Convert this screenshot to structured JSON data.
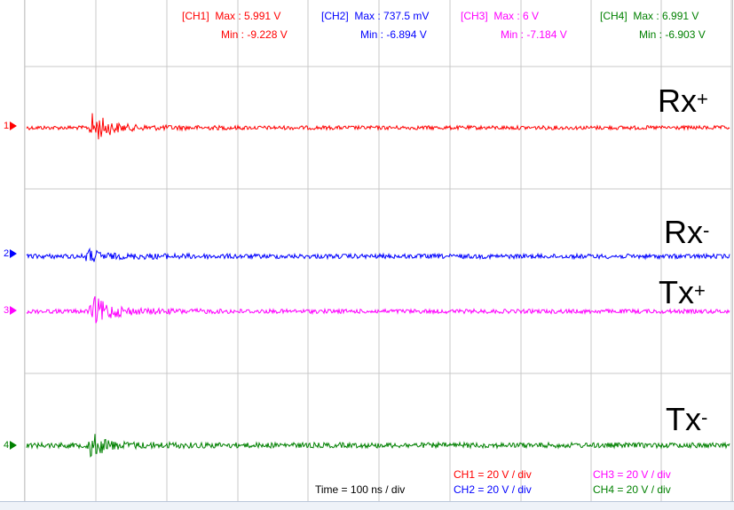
{
  "measurements": [
    {
      "ch_tag": "[CH1]",
      "max_label": "Max : 5.991 V",
      "min_label": "Min : -9.228 V",
      "color": "#ff0000"
    },
    {
      "ch_tag": "[CH2]",
      "max_label": "Max : 737.5 mV",
      "min_label": "Min : -6.894 V",
      "color": "#0000ff"
    },
    {
      "ch_tag": "[CH3]",
      "max_label": "Max : 6 V",
      "min_label": "Min : -7.184 V",
      "color": "#ff00ff"
    },
    {
      "ch_tag": "[CH4]",
      "max_label": "Max : 6.991 V",
      "min_label": "Min : -6.903 V",
      "color": "#008000"
    }
  ],
  "channels": [
    {
      "marker": "1",
      "name": "Rx",
      "polarity": "+",
      "color": "#ff0000"
    },
    {
      "marker": "2",
      "name": "Rx",
      "polarity": "-",
      "color": "#0000ff"
    },
    {
      "marker": "3",
      "name": "Tx",
      "polarity": "+",
      "color": "#ff00ff"
    },
    {
      "marker": "4",
      "name": "Tx",
      "polarity": "-",
      "color": "#008000"
    }
  ],
  "timebase": "Time = 100 ns / div",
  "scales": [
    {
      "label": "CH1 = 20 V / div",
      "color": "#ff0000"
    },
    {
      "label": "CH2 = 20 V / div",
      "color": "#0000ff"
    },
    {
      "label": "CH3 = 20 V / div",
      "color": "#ff00ff"
    },
    {
      "label": "CH4 = 20 V / div",
      "color": "#008000"
    }
  ],
  "grid_color": "#c8c8c8"
}
